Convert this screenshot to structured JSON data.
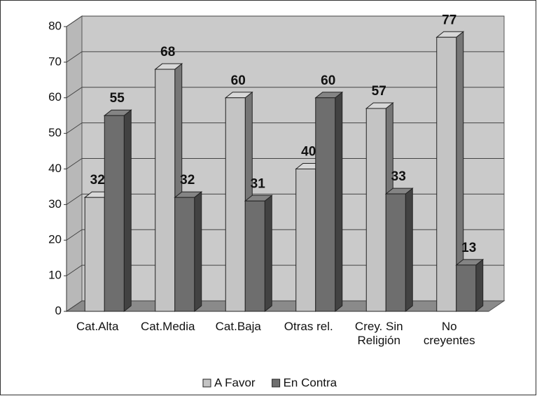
{
  "chart_data": {
    "type": "bar3d",
    "categories": [
      "Cat.Alta",
      "Cat.Media",
      "Cat.Baja",
      "Otras rel.",
      "Crey. Sin Religión",
      "No creyentes"
    ],
    "series": [
      {
        "name": "A Favor",
        "color": "#c4c4c4",
        "values": [
          32,
          68,
          60,
          40,
          57,
          77
        ]
      },
      {
        "name": "En Contra",
        "color": "#6e6e6e",
        "values": [
          55,
          32,
          31,
          60,
          33,
          13
        ]
      }
    ],
    "ylim": [
      0,
      80
    ],
    "yticks": [
      0,
      10,
      20,
      30,
      40,
      50,
      60,
      70,
      80
    ],
    "grid": true,
    "legend": "bottom"
  }
}
